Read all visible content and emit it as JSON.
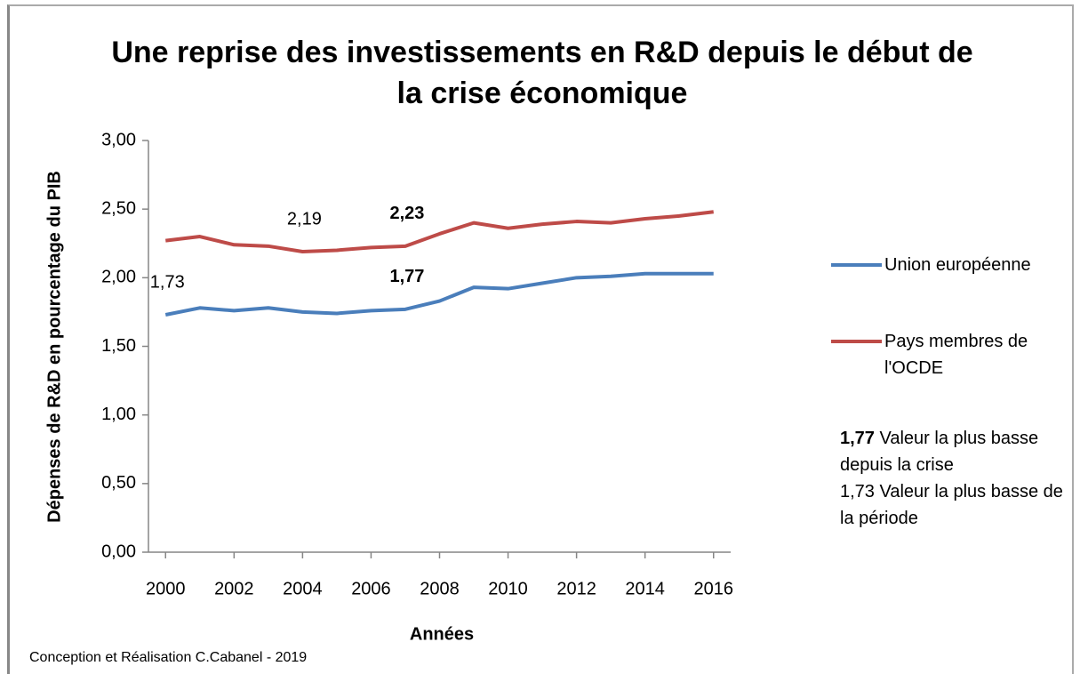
{
  "chart_data": {
    "type": "line",
    "title": "Une reprise des investissements en R&D depuis le début de la crise économique",
    "x_label": "Années",
    "y_label": "Dépenses de R&D en pourcentage du PIB",
    "x": [
      2000,
      2001,
      2002,
      2003,
      2004,
      2005,
      2006,
      2007,
      2008,
      2009,
      2010,
      2011,
      2012,
      2013,
      2014,
      2015,
      2016
    ],
    "series": [
      {
        "name": "Union européenne",
        "color": "#4a7ebb",
        "values": [
          1.73,
          1.78,
          1.76,
          1.78,
          1.75,
          1.74,
          1.76,
          1.77,
          1.83,
          1.93,
          1.92,
          1.96,
          2.0,
          2.01,
          2.03,
          2.03,
          2.03
        ],
        "value_labels": [
          "1,73",
          null,
          null,
          null,
          null,
          null,
          null,
          "1,77",
          null,
          null,
          null,
          null,
          null,
          null,
          null,
          null,
          null
        ],
        "bold_labels": [
          7
        ]
      },
      {
        "name": "Pays membres de l'OCDE",
        "color": "#be4b48",
        "values": [
          2.27,
          2.3,
          2.24,
          2.23,
          2.19,
          2.2,
          2.22,
          2.23,
          2.32,
          2.4,
          2.36,
          2.39,
          2.41,
          2.4,
          2.43,
          2.45,
          2.48
        ],
        "value_labels": [
          null,
          null,
          null,
          null,
          "2,19",
          null,
          null,
          "2,23",
          null,
          null,
          null,
          null,
          null,
          null,
          null,
          null,
          null
        ],
        "bold_labels": [
          7
        ]
      }
    ],
    "xlim": [
      1999.5,
      2016.5
    ],
    "xticks": [
      2000,
      2002,
      2004,
      2006,
      2008,
      2010,
      2012,
      2014,
      2016
    ],
    "ylim": [
      0,
      3
    ],
    "yticks": [
      {
        "value": 0,
        "label": "0,00"
      },
      {
        "value": 0.5,
        "label": "0,50"
      },
      {
        "value": 1,
        "label": "1,00"
      },
      {
        "value": 1.5,
        "label": "1,50"
      },
      {
        "value": 2,
        "label": "2,00"
      },
      {
        "value": 2.5,
        "label": "2,50"
      },
      {
        "value": 3,
        "label": "3,00"
      }
    ],
    "grid": false,
    "legend": "right",
    "annotations": [
      {
        "bold": "1,77",
        "text": "Valeur la plus basse depuis la crise"
      },
      {
        "text": "1,73 Valeur la plus basse de la période"
      }
    ],
    "footer": "Conception et Réalisation C.Cabanel - 2019"
  }
}
